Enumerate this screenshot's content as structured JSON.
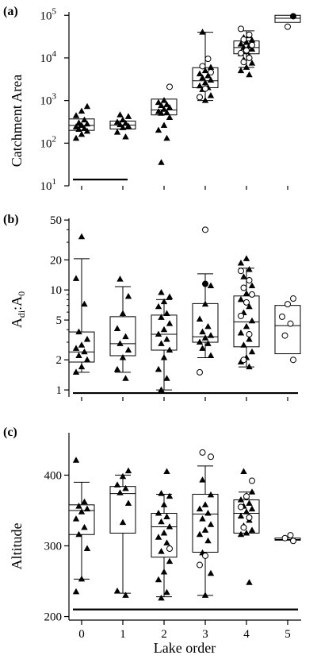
{
  "x_label": "Lake order",
  "x_ticks": [
    "0",
    "1",
    "2",
    "3",
    "4",
    "5"
  ],
  "chart_data": [
    {
      "type": "box",
      "panel_label": "(a)",
      "ylabel": "Catchment Area",
      "yscale": "log",
      "ylim": [
        10,
        120000
      ],
      "yticks": [
        10,
        100,
        1000,
        10000,
        100000
      ],
      "ytick_labels": [
        {
          "base": "10",
          "exp": "1"
        },
        {
          "base": "10",
          "exp": "2"
        },
        {
          "base": "10",
          "exp": "3"
        },
        {
          "base": "10",
          "exp": "4"
        },
        {
          "base": "10",
          "exp": "5"
        }
      ],
      "categories": [
        "0",
        "1",
        "2",
        "3",
        "4",
        "5"
      ],
      "boxes": [
        {
          "q1": 200,
          "median": 260,
          "q3": 370,
          "whisker_low": null,
          "whisker_high": null
        },
        {
          "q1": 215,
          "median": 265,
          "q3": 330,
          "whisker_low": null,
          "whisker_high": null
        },
        {
          "q1": 460,
          "median": 600,
          "q3": 1080,
          "whisker_low": null,
          "whisker_high": null
        },
        {
          "q1": 2000,
          "median": 2900,
          "q3": 5900,
          "whisker_low": 1000,
          "whisker_high": 40000
        },
        {
          "q1": 12500,
          "median": 17500,
          "q3": 25000,
          "whisker_low": 6000,
          "whisker_high": 43000
        },
        {
          "q1": 68000,
          "median": 85000,
          "q3": 100000,
          "whisker_low": null,
          "whisker_high": null
        }
      ],
      "points": [
        {
          "x": "0",
          "marker": "triangle",
          "values": [
            130,
            160,
            190,
            210,
            220,
            240,
            260,
            280,
            300,
            350,
            440,
            560,
            720
          ]
        },
        {
          "x": "1",
          "marker": "triangle",
          "values": [
            140,
            180,
            230,
            250,
            270,
            290,
            310,
            350,
            420,
            460
          ]
        },
        {
          "x": "2",
          "marker": "triangle",
          "values": [
            35,
            130,
            200,
            260,
            400,
            500,
            520,
            550,
            620,
            680,
            760,
            800,
            900,
            1000
          ]
        },
        {
          "x": "2",
          "marker": "open-circle",
          "values": [
            2100
          ]
        },
        {
          "x": "3",
          "marker": "triangle",
          "values": [
            1000,
            1300,
            1800,
            2000,
            2200,
            2600,
            3000,
            3400,
            3800,
            4200,
            5000,
            6000,
            40000
          ]
        },
        {
          "x": "3",
          "marker": "open-circle",
          "values": [
            1200,
            1900,
            4600,
            6400,
            9500
          ]
        },
        {
          "x": "4",
          "marker": "triangle",
          "values": [
            4000,
            5000,
            6000,
            7500,
            9000,
            11000,
            12500,
            14000,
            16000,
            17500,
            19000,
            21000,
            23000,
            26000,
            30000,
            33000
          ]
        },
        {
          "x": "4",
          "marker": "open-circle",
          "values": [
            8000,
            10000,
            13000,
            15000,
            20000,
            27000,
            35000,
            48000
          ]
        },
        {
          "x": "5",
          "marker": "filled-circle",
          "values": [
            95000
          ]
        },
        {
          "x": "5",
          "marker": "open-circle",
          "values": [
            54000
          ]
        }
      ],
      "reference_line": {
        "from": "0",
        "to": "1",
        "value": 14
      }
    },
    {
      "type": "box",
      "panel_label": "(b)",
      "ylabel_parts": {
        "a": "A",
        "a_sub": "di",
        "sep": ":A",
        "b_sub": "0"
      },
      "yscale": "log",
      "ylim": [
        0.85,
        52
      ],
      "yticks": [
        1,
        2,
        5,
        10,
        20,
        50
      ],
      "ytick_labels": [
        "1",
        "2",
        "5",
        "10",
        "20",
        "50"
      ],
      "categories": [
        "0",
        "1",
        "2",
        "3",
        "4",
        "5"
      ],
      "boxes": [
        {
          "q1": 1.9,
          "median": 2.4,
          "q3": 3.8,
          "whisker_low": 1.5,
          "whisker_high": 20.5
        },
        {
          "q1": 2.2,
          "median": 2.9,
          "q3": 5.4,
          "whisker_low": 1.5,
          "whisker_high": 10.8
        },
        {
          "q1": 2.5,
          "median": 3.6,
          "q3": 5.6,
          "whisker_low": 1.0,
          "whisker_high": 8.0
        },
        {
          "q1": 3.0,
          "median": 3.4,
          "q3": 7.3,
          "whisker_low": 2.1,
          "whisker_high": 14.5
        },
        {
          "q1": 2.7,
          "median": 4.8,
          "q3": 8.7,
          "whisker_low": 1.7,
          "whisker_high": 16.5
        },
        {
          "q1": 2.3,
          "median": 4.4,
          "q3": 7.0,
          "whisker_low": null,
          "whisker_high": null
        }
      ],
      "points": [
        {
          "x": "0",
          "marker": "triangle",
          "values": [
            1.5,
            1.7,
            2.0,
            2.2,
            2.4,
            2.6,
            2.8,
            3.2,
            3.8,
            7.2,
            13.0,
            34.0
          ]
        },
        {
          "x": "1",
          "marker": "triangle",
          "values": [
            1.3,
            1.6,
            2.1,
            2.5,
            2.9,
            3.4,
            4.1,
            5.8,
            8.6,
            12.8
          ]
        },
        {
          "x": "2",
          "marker": "triangle",
          "values": [
            1.0,
            1.3,
            1.6,
            2.1,
            2.5,
            2.9,
            3.2,
            3.6,
            4.0,
            4.6,
            5.3,
            5.8,
            6.8,
            7.6,
            8.5,
            9.4
          ]
        },
        {
          "x": "3",
          "marker": "triangle",
          "values": [
            2.2,
            2.6,
            2.9,
            3.0,
            3.3,
            3.5,
            3.8,
            4.3,
            5.1,
            7.2,
            11.0
          ]
        },
        {
          "x": "3",
          "marker": "filled-circle",
          "values": [
            11.5
          ]
        },
        {
          "x": "3",
          "marker": "open-circle",
          "values": [
            1.5,
            40.0
          ]
        },
        {
          "x": "4",
          "marker": "triangle",
          "values": [
            1.7,
            1.9,
            2.1,
            2.4,
            2.8,
            3.2,
            3.7,
            4.3,
            4.9,
            5.9,
            6.8,
            8.0,
            9.2,
            11.0,
            13.5,
            16.0,
            18.5,
            20.5
          ]
        },
        {
          "x": "4",
          "marker": "open-circle",
          "values": [
            2.0,
            3.6,
            5.5,
            7.5,
            9.0,
            10.5,
            12.5,
            15.5
          ]
        },
        {
          "x": "5",
          "marker": "open-circle",
          "values": [
            2.0,
            3.5,
            4.6,
            5.4,
            7.2,
            8.2
          ]
        }
      ],
      "reference_line": {
        "from": "0",
        "to": "5",
        "value": 0.93
      }
    },
    {
      "type": "box",
      "panel_label": "(c)",
      "ylabel": "Altitude",
      "yscale": "linear",
      "ylim": [
        195,
        460
      ],
      "yticks": [
        200,
        300,
        400
      ],
      "ytick_labels": [
        "200",
        "300",
        "400"
      ],
      "categories": [
        "0",
        "1",
        "2",
        "3",
        "4",
        "5"
      ],
      "boxes": [
        {
          "q1": 316,
          "median": 350,
          "q3": 358,
          "whisker_low": 253,
          "whisker_high": 390
        },
        {
          "q1": 318,
          "median": 374,
          "q3": 384,
          "whisker_low": 233,
          "whisker_high": 400
        },
        {
          "q1": 284,
          "median": 327,
          "q3": 346,
          "whisker_low": 228,
          "whisker_high": 373
        },
        {
          "q1": 291,
          "median": 345,
          "q3": 373,
          "whisker_low": 230,
          "whisker_high": 413
        },
        {
          "q1": 318,
          "median": 346,
          "q3": 365,
          "whisker_low": null,
          "whisker_high": 376
        },
        {
          "q1": 308,
          "median": 309,
          "q3": 311,
          "whisker_low": null,
          "whisker_high": null
        }
      ],
      "points": [
        {
          "x": "0",
          "marker": "triangle",
          "values": [
            235,
            253,
            296,
            316,
            326,
            338,
            348,
            352,
            356,
            362,
            421
          ]
        },
        {
          "x": "1",
          "marker": "triangle",
          "values": [
            230,
            236,
            333,
            360,
            375,
            381,
            386,
            398,
            406
          ]
        },
        {
          "x": "2",
          "marker": "triangle",
          "values": [
            226,
            234,
            252,
            263,
            278,
            292,
            304,
            312,
            318,
            327,
            334,
            341,
            346,
            358,
            370,
            374,
            405
          ]
        },
        {
          "x": "2",
          "marker": "open-circle",
          "values": [
            296
          ]
        },
        {
          "x": "3",
          "marker": "triangle",
          "values": [
            230,
            261,
            290,
            307,
            316,
            322,
            330,
            338,
            346,
            352,
            358,
            372,
            393
          ]
        },
        {
          "x": "3",
          "marker": "open-circle",
          "values": [
            273,
            286,
            426,
            432
          ]
        },
        {
          "x": "4",
          "marker": "triangle",
          "values": [
            248,
            316,
            318,
            322,
            328,
            336,
            342,
            348,
            352,
            356,
            360,
            365,
            370,
            376,
            405
          ]
        },
        {
          "x": "4",
          "marker": "open-circle",
          "values": [
            326,
            340,
            355,
            370,
            392
          ]
        },
        {
          "x": "5",
          "marker": "open-circle",
          "values": [
            307,
            311,
            315
          ]
        }
      ],
      "reference_line": {
        "from": "0",
        "to": "5",
        "value": 210
      }
    }
  ]
}
